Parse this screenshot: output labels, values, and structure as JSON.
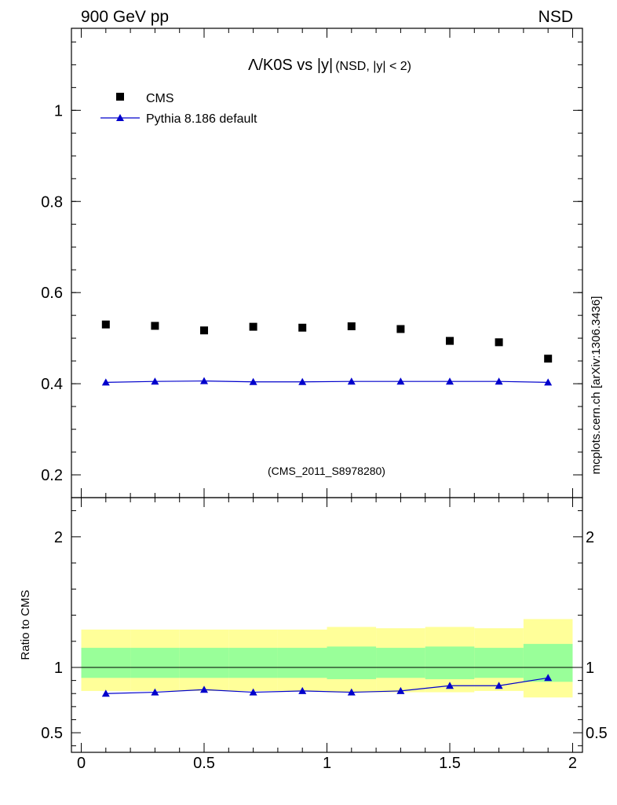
{
  "header": {
    "left": "900 GeV pp",
    "right": "NSD"
  },
  "side_label": "mcplots.cern.ch [arXiv:1306.3436]",
  "chart_data": [
    {
      "type": "scatter",
      "title_main": "Λ/K0S vs |y|",
      "title_sub": "(NSD, |y| < 2)",
      "watermark": "(CMS_2011_S8978280)",
      "xlim": [
        -0.04,
        2.04
      ],
      "ylim": [
        0.15,
        1.18
      ],
      "yticks": [
        0.2,
        0.4,
        0.6,
        0.8,
        1
      ],
      "ytick_labels": [
        "0.2",
        "0.4",
        "0.6",
        "0.8",
        "1"
      ],
      "legend_position": "top-left",
      "series": [
        {
          "name": "CMS",
          "marker": "square",
          "color": "#000000",
          "x": [
            0.1,
            0.3,
            0.5,
            0.7,
            0.9,
            1.1,
            1.3,
            1.5,
            1.7,
            1.9
          ],
          "y": [
            0.53,
            0.527,
            0.517,
            0.525,
            0.523,
            0.526,
            0.52,
            0.494,
            0.491,
            0.455
          ]
        },
        {
          "name": "Pythia 8.186 default",
          "marker": "triangle",
          "color": "#0000cc",
          "x": [
            0.1,
            0.3,
            0.5,
            0.7,
            0.9,
            1.1,
            1.3,
            1.5,
            1.7,
            1.9
          ],
          "y": [
            0.403,
            0.405,
            0.406,
            0.404,
            0.404,
            0.405,
            0.405,
            0.405,
            0.405,
            0.403
          ]
        }
      ]
    },
    {
      "type": "line",
      "ylabel": "Ratio to CMS",
      "xlim": [
        -0.04,
        2.04
      ],
      "ylim": [
        0.35,
        2.3
      ],
      "yticks": [
        0.5,
        1,
        2
      ],
      "ytick_labels": [
        "0.5",
        "1",
        "2"
      ],
      "xticks": [
        0,
        0.5,
        1,
        1.5,
        2
      ],
      "xtick_labels": [
        "0",
        "0.5",
        "1",
        "1.5",
        "2"
      ],
      "bands": {
        "x_edges": [
          0,
          0.2,
          0.4,
          0.6,
          0.8,
          1.0,
          1.2,
          1.4,
          1.6,
          1.8,
          2.0
        ],
        "yellow_low": [
          0.82,
          0.82,
          0.82,
          0.82,
          0.82,
          0.81,
          0.81,
          0.81,
          0.82,
          0.77
        ],
        "yellow_high": [
          1.29,
          1.29,
          1.29,
          1.29,
          1.29,
          1.31,
          1.3,
          1.31,
          1.3,
          1.37
        ],
        "green_low": [
          0.92,
          0.92,
          0.92,
          0.92,
          0.92,
          0.91,
          0.92,
          0.91,
          0.92,
          0.89
        ],
        "green_high": [
          1.15,
          1.15,
          1.15,
          1.15,
          1.15,
          1.16,
          1.15,
          1.16,
          1.15,
          1.18
        ],
        "yellow_color": "#ffff99",
        "green_color": "#99ff99"
      },
      "series": [
        {
          "name": "Pythia 8.186 default",
          "color": "#0000cc",
          "x": [
            0.1,
            0.3,
            0.5,
            0.7,
            0.9,
            1.1,
            1.3,
            1.5,
            1.7,
            1.9
          ],
          "y": [
            0.8,
            0.81,
            0.83,
            0.81,
            0.82,
            0.81,
            0.82,
            0.86,
            0.86,
            0.92
          ]
        }
      ]
    }
  ]
}
